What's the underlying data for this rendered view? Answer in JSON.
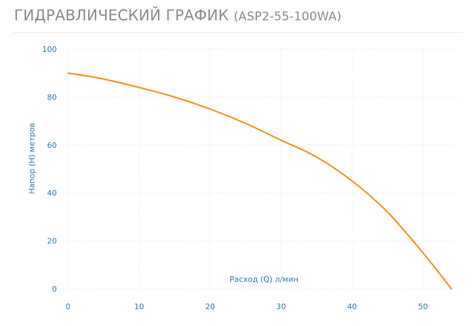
{
  "header": {
    "title": "ГИДРАВЛИЧЕСКИЙ ГРАФИК",
    "model": "(ASP2-55-100WA)"
  },
  "chart_data": {
    "type": "line",
    "title": "ГИДРАВЛИЧЕСКИЙ ГРАФИК (ASP2-55-100WA)",
    "xlabel": "Расход (Q) л/мин",
    "ylabel": "Напор (H) метров",
    "xlim": [
      0,
      54
    ],
    "ylim": [
      0,
      100
    ],
    "x_ticks": [
      0,
      10,
      20,
      30,
      40,
      50
    ],
    "y_ticks": [
      0,
      20,
      40,
      60,
      80,
      100
    ],
    "grid": true,
    "colors": {
      "line": "#f7941d",
      "axis_text": "#2d7ba6",
      "grid": "#dddddd"
    },
    "series": [
      {
        "x": [
          0,
          5,
          10,
          15,
          20,
          25,
          30,
          35,
          40,
          45,
          50,
          54
        ],
        "values": [
          90,
          87.5,
          84,
          80,
          75,
          69,
          62,
          55,
          45,
          32,
          15,
          0
        ]
      }
    ]
  }
}
